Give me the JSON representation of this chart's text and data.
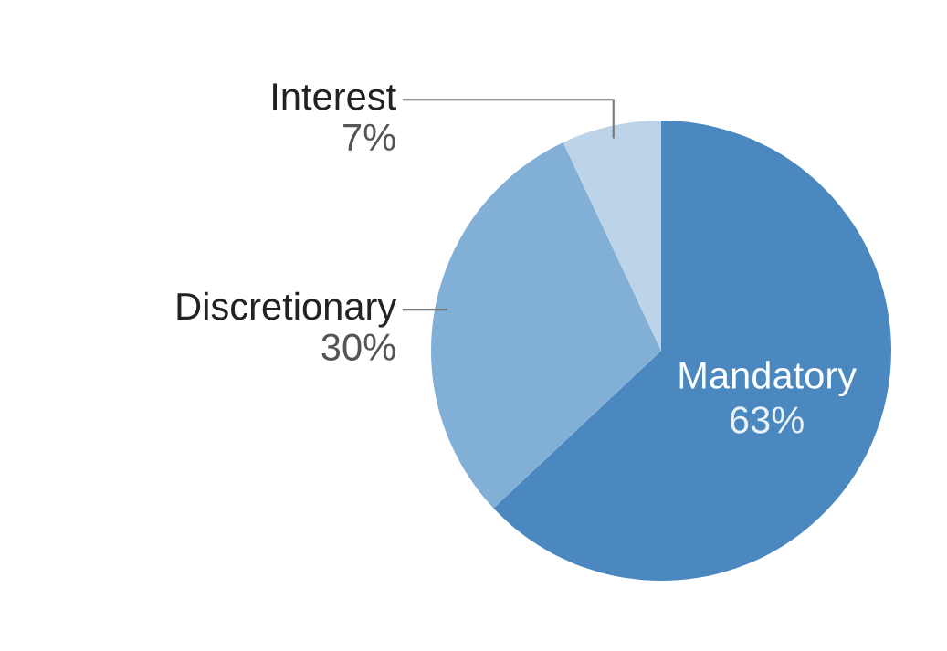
{
  "chart_data": {
    "type": "pie",
    "categories": [
      "Mandatory",
      "Discretionary",
      "Interest"
    ],
    "values": [
      63,
      30,
      7
    ],
    "colors": [
      "#4a88bf",
      "#82afd6",
      "#bcd3e8"
    ],
    "value_labels": [
      "63%",
      "30%",
      "7%"
    ]
  }
}
